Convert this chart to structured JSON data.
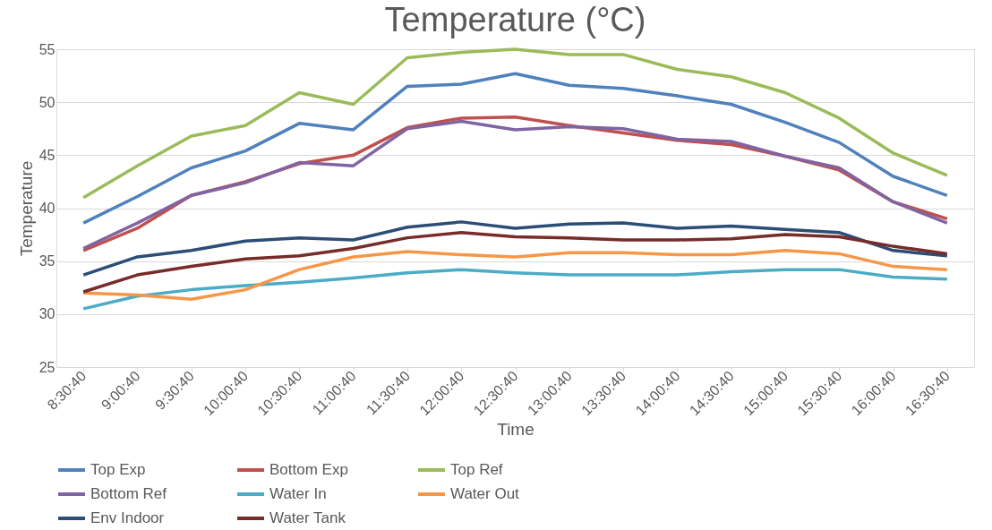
{
  "chart_data": {
    "type": "line",
    "title": "Temperature (°C)",
    "xlabel": "Time",
    "ylabel": "Temperature",
    "categories": [
      "8:30:40",
      "9:00:40",
      "9:30:40",
      "10:00:40",
      "10:30:40",
      "11:00:40",
      "11:30:40",
      "12:00:40",
      "12:30:40",
      "13:00:40",
      "13:30:40",
      "14:00:40",
      "14:30:40",
      "15:00:40",
      "15:30:40",
      "16:00:40",
      "16:30:40"
    ],
    "series": [
      {
        "name": "Top Exp",
        "color": "#4f81bd",
        "values": [
          38.6,
          41.1,
          43.8,
          45.4,
          48.0,
          47.4,
          51.5,
          51.7,
          52.7,
          51.6,
          51.3,
          50.6,
          49.8,
          48.1,
          46.2,
          43.0,
          41.2
        ]
      },
      {
        "name": "Bottom Exp",
        "color": "#c0504d",
        "values": [
          36.0,
          38.1,
          41.2,
          42.5,
          44.2,
          45.0,
          47.6,
          48.5,
          48.6,
          47.8,
          47.1,
          46.4,
          46.0,
          44.9,
          43.6,
          40.6,
          39.0
        ]
      },
      {
        "name": "Top Ref",
        "color": "#9bbb59",
        "values": [
          41.0,
          44.0,
          46.8,
          47.8,
          50.9,
          49.8,
          54.2,
          54.7,
          55.0,
          54.5,
          54.5,
          53.1,
          52.4,
          50.9,
          48.5,
          45.2,
          43.1
        ]
      },
      {
        "name": "Bottom Ref",
        "color": "#8064a2",
        "values": [
          36.2,
          38.6,
          41.2,
          42.4,
          44.3,
          44.0,
          47.5,
          48.2,
          47.4,
          47.7,
          47.5,
          46.5,
          46.3,
          44.9,
          43.8,
          40.6,
          38.6
        ]
      },
      {
        "name": "Water In",
        "color": "#4bacc6",
        "values": [
          30.5,
          31.7,
          32.3,
          32.7,
          33.0,
          33.4,
          33.9,
          34.2,
          33.9,
          33.7,
          33.7,
          33.7,
          34.0,
          34.2,
          34.2,
          33.5,
          33.3
        ]
      },
      {
        "name": "Water Out",
        "color": "#f79646",
        "values": [
          32.0,
          31.8,
          31.4,
          32.3,
          34.2,
          35.4,
          35.9,
          35.6,
          35.4,
          35.8,
          35.8,
          35.6,
          35.6,
          36.0,
          35.7,
          34.5,
          34.2
        ]
      },
      {
        "name": "Env Indoor",
        "color": "#2c4d75",
        "values": [
          33.7,
          35.4,
          36.0,
          36.9,
          37.2,
          37.0,
          38.2,
          38.7,
          38.1,
          38.5,
          38.6,
          38.1,
          38.3,
          38.0,
          37.7,
          36.0,
          35.5
        ]
      },
      {
        "name": "Water Tank",
        "color": "#772c2a",
        "values": [
          32.1,
          33.7,
          34.5,
          35.2,
          35.5,
          36.2,
          37.2,
          37.7,
          37.3,
          37.2,
          37.0,
          37.0,
          37.1,
          37.5,
          37.3,
          36.4,
          35.7
        ]
      }
    ],
    "ylim": [
      25,
      55
    ],
    "yticks": [
      25,
      30,
      35,
      40,
      45,
      50,
      55
    ],
    "grid": "y",
    "legend": "bottom",
    "marker": "none",
    "line_style": "solid"
  }
}
